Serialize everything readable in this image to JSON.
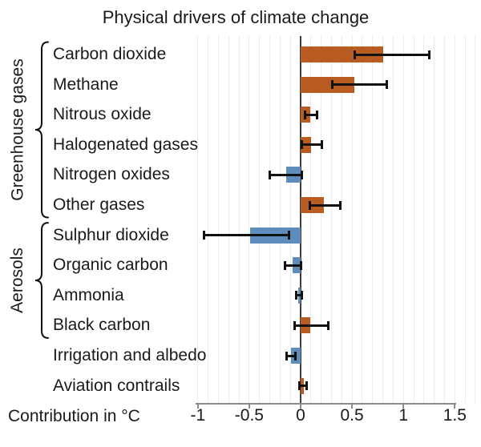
{
  "title": "Physical drivers of climate change",
  "chart_data": {
    "type": "bar",
    "orientation": "horizontal",
    "title": "Physical drivers of climate change",
    "xlabel": "Contribution in °C",
    "xlim": [
      -1.05,
      1.75
    ],
    "grid": "vertical gridlines every 0.1, light gray; dark vertical line at 0",
    "legend_position": "none",
    "x_ticks": [
      {
        "value": -1,
        "label": "-1"
      },
      {
        "value": -0.5,
        "label": "-0.5"
      },
      {
        "value": 0,
        "label": "0"
      },
      {
        "value": 0.5,
        "label": "0.5"
      },
      {
        "value": 1,
        "label": "1"
      },
      {
        "value": 1.5,
        "label": "1.5"
      }
    ],
    "groups": [
      {
        "name": "Greenhouse gases",
        "first_row": 0,
        "last_row": 5
      },
      {
        "name": "Aerosols",
        "first_row": 6,
        "last_row": 9
      }
    ],
    "rows": [
      {
        "label": "Carbon dioxide",
        "value": 0.8,
        "ci_low": 0.53,
        "ci_high": 1.25
      },
      {
        "label": "Methane",
        "value": 0.52,
        "ci_low": 0.31,
        "ci_high": 0.84
      },
      {
        "label": "Nitrous oxide",
        "value": 0.09,
        "ci_low": 0.04,
        "ci_high": 0.16
      },
      {
        "label": "Halogenated gases",
        "value": 0.1,
        "ci_low": 0.01,
        "ci_high": 0.21
      },
      {
        "label": "Nitrogen oxides",
        "value": -0.14,
        "ci_low": -0.3,
        "ci_high": 0.01
      },
      {
        "label": "Other gases",
        "value": 0.23,
        "ci_low": 0.09,
        "ci_high": 0.39
      },
      {
        "label": "Sulphur dioxide",
        "value": -0.49,
        "ci_low": -0.94,
        "ci_high": -0.11
      },
      {
        "label": "Organic carbon",
        "value": -0.08,
        "ci_low": -0.15,
        "ci_high": 0.0
      },
      {
        "label": "Ammonia",
        "value": -0.02,
        "ci_low": -0.04,
        "ci_high": 0.01
      },
      {
        "label": "Black carbon",
        "value": 0.09,
        "ci_low": -0.06,
        "ci_high": 0.27
      },
      {
        "label": "Irrigation and albedo",
        "value": -0.09,
        "ci_low": -0.14,
        "ci_high": -0.05
      },
      {
        "label": "Aviation contrails",
        "value": 0.03,
        "ci_low": -0.01,
        "ci_high": 0.06
      }
    ],
    "colors": {
      "positive_bar": "#b85c22",
      "negative_bar": "#5e8dbb",
      "error_bar": "#111111",
      "zero_line": "#3d3d3d",
      "gridline": "#ebebeb",
      "axis": "#8a8a8a",
      "text": "#1a1a1a"
    }
  }
}
